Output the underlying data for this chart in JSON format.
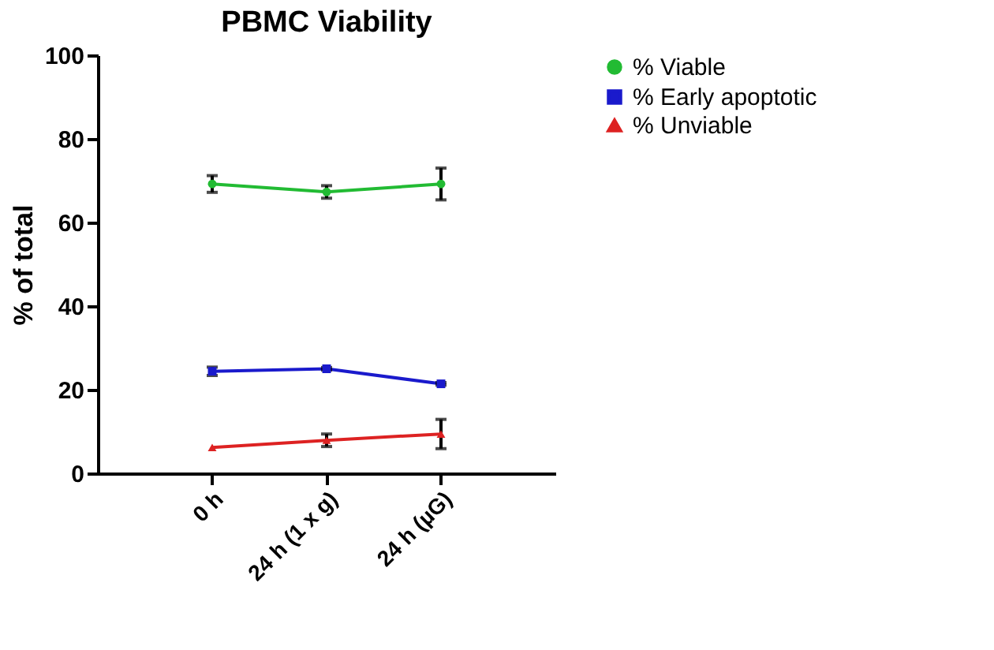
{
  "chart_data": {
    "type": "line",
    "title": "PBMC Viability",
    "ylabel": "% of total",
    "categories": [
      "0 h",
      "24 h (1 x g)",
      "24 h (µG)"
    ],
    "series": [
      {
        "name": "% Viable",
        "color": "#22bb33",
        "marker": "circle",
        "values": [
          69.2,
          67.3,
          69.2
        ],
        "errors": [
          2,
          1.5,
          3.8
        ]
      },
      {
        "name": "% Early apoptotic",
        "color": "#1a1acc",
        "marker": "square",
        "values": [
          24.4,
          25.0,
          21.4
        ],
        "errors": [
          1,
          0.3,
          0.3
        ]
      },
      {
        "name": "% Unviable",
        "color": "#dd2222",
        "marker": "triangle",
        "values": [
          6.2,
          7.9,
          9.4
        ],
        "errors": [
          null,
          1.5,
          3.5
        ]
      }
    ],
    "ylim": [
      0,
      100
    ],
    "yticks": [
      0,
      20,
      40,
      60,
      80,
      100
    ],
    "grid": false,
    "legend": "right",
    "line_style": "solid"
  }
}
